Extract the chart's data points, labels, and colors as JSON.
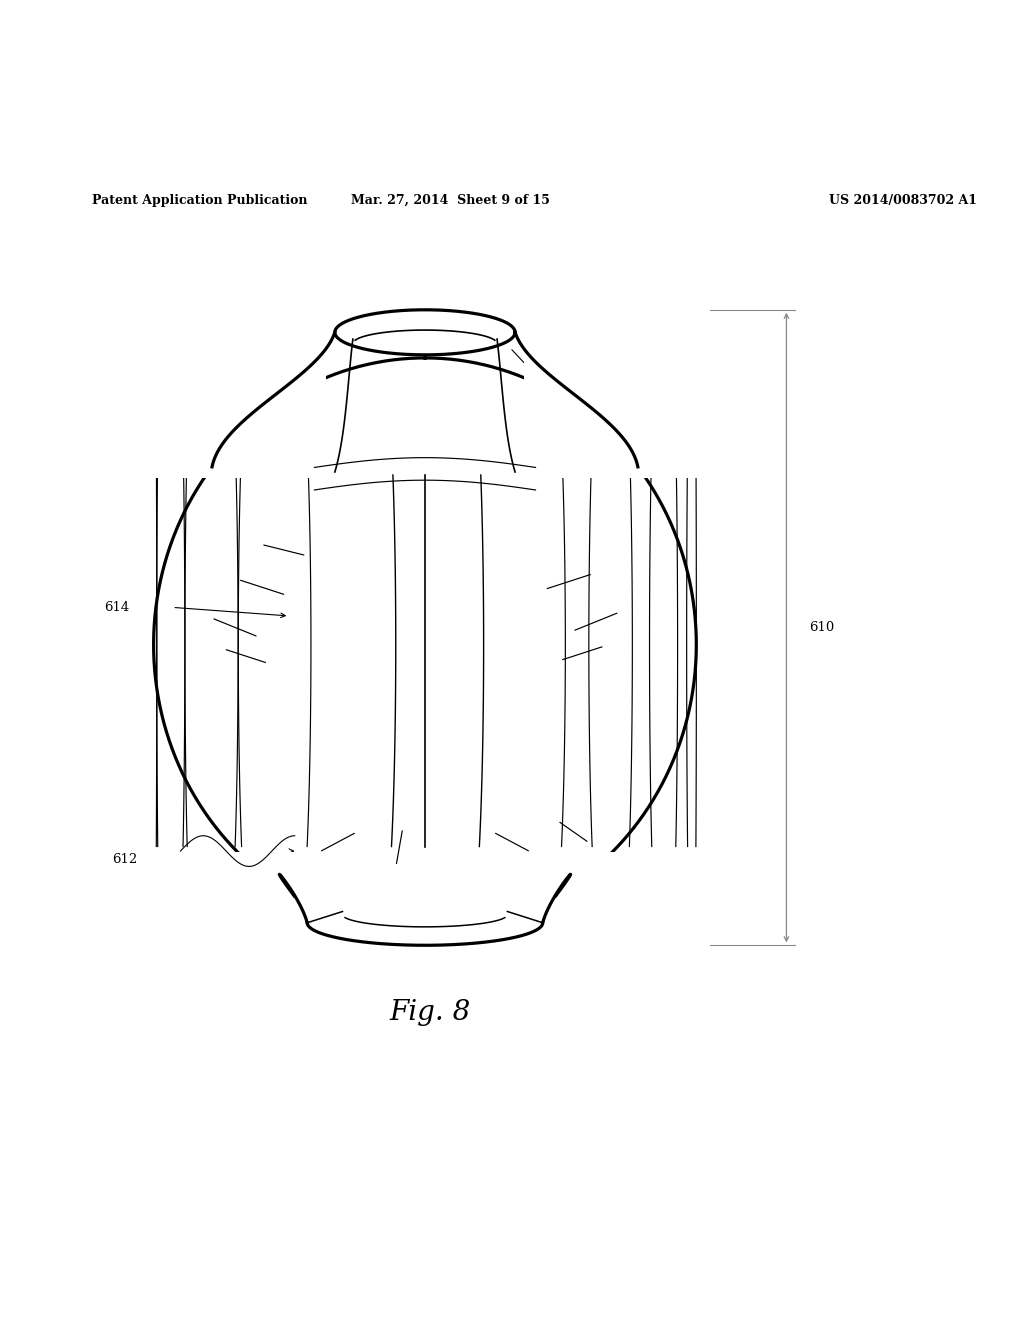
{
  "title": "",
  "header_left": "Patent Application Publication",
  "header_center": "Mar. 27, 2014  Sheet 9 of 15",
  "header_right": "US 2014/0083702 A1",
  "fig_label": "Fig. 8",
  "bg_color": "#ffffff",
  "line_color": "#000000",
  "dim_line_color": "#888888"
}
